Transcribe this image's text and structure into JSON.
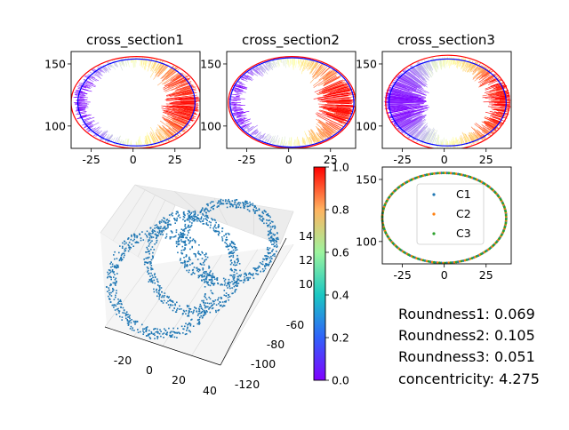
{
  "colors": {
    "circle_red": "#ff0000",
    "circle_blue": "#0000ff",
    "scatter_blue": "#1f77b4",
    "c1": "#1f77b4",
    "c2": "#ff7f0e",
    "c3": "#2ca02c"
  },
  "chart_data": [
    {
      "type": "scatter",
      "title": "cross_section1",
      "xlim": [
        -37,
        40
      ],
      "ylim": [
        82,
        160
      ],
      "x_ticks": [
        "-25",
        "0",
        "25"
      ],
      "y_ticks": [
        "100",
        "150"
      ],
      "colormap": "rainbow",
      "ellipse_red": {
        "cx": 2,
        "cy": 119,
        "rx": 39,
        "ry": 37
      },
      "ellipse_blue": {
        "cx": 2,
        "cy": 119,
        "rx": 35,
        "ry": 35
      }
    },
    {
      "type": "scatter",
      "title": "cross_section2",
      "xlim": [
        -37,
        40
      ],
      "ylim": [
        82,
        160
      ],
      "x_ticks": [
        "-25",
        "0",
        "25"
      ],
      "y_ticks": [
        "100",
        "150"
      ],
      "colormap": "rainbow",
      "ellipse_red": {
        "cx": 2,
        "cy": 119,
        "rx": 38,
        "ry": 37
      },
      "ellipse_blue": {
        "cx": 2,
        "cy": 119,
        "rx": 37,
        "ry": 36
      }
    },
    {
      "type": "scatter",
      "title": "cross_section3",
      "xlim": [
        -37,
        40
      ],
      "ylim": [
        82,
        160
      ],
      "x_ticks": [
        "-25",
        "0",
        "25"
      ],
      "y_ticks": [
        "100",
        "150"
      ],
      "colormap": "rainbow",
      "ellipse_red": {
        "cx": 2,
        "cy": 119,
        "rx": 37,
        "ry": 38
      },
      "ellipse_blue": {
        "cx": 2,
        "cy": 119,
        "rx": 35,
        "ry": 35
      }
    },
    {
      "type": "scatter",
      "title": "",
      "x_ticks": [
        "-20",
        "0",
        "20",
        "40"
      ],
      "y_ticks": [
        "-60",
        "-80",
        "-100",
        "-120"
      ],
      "z_ticks": [
        "140",
        "120",
        "100"
      ],
      "series": [
        {
          "values": []
        }
      ]
    },
    {
      "type": "colorbar",
      "range": [
        0.0,
        1.0
      ],
      "ticks": [
        "0.0",
        "0.2",
        "0.4",
        "0.6",
        "0.8",
        "1.0"
      ]
    },
    {
      "type": "scatter",
      "title": "",
      "xlim": [
        -37,
        40
      ],
      "ylim": [
        82,
        160
      ],
      "x_ticks": [
        "-25",
        "0",
        "25"
      ],
      "y_ticks": [
        "100",
        "150"
      ],
      "legend": "center",
      "series": [
        {
          "name": "C1",
          "cx": 0,
          "cy": 119,
          "r": 37
        },
        {
          "name": "C2",
          "cx": 0,
          "cy": 119,
          "r": 37
        },
        {
          "name": "C3",
          "cx": 0,
          "cy": 119,
          "r": 37
        }
      ]
    }
  ],
  "stats": [
    {
      "label": "Roundness1: 0.069"
    },
    {
      "label": "Roundness2: 0.105"
    },
    {
      "label": "Roundness3: 0.051"
    },
    {
      "label": "concentricity: 4.275"
    }
  ]
}
